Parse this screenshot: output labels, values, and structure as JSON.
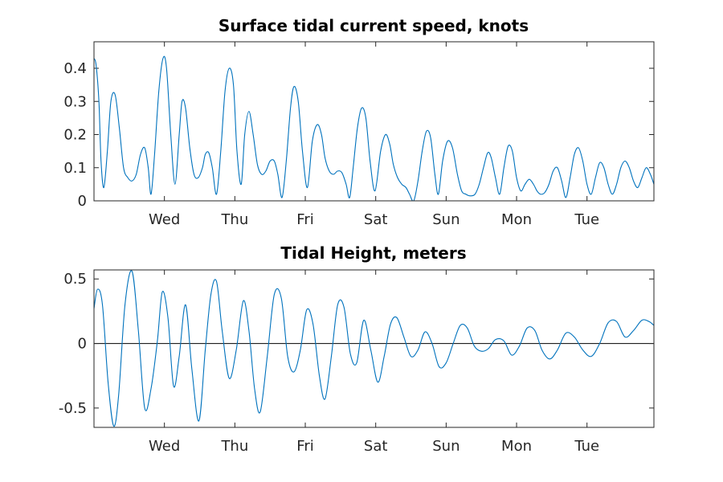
{
  "chart_data": [
    {
      "type": "line",
      "title": "Surface tidal current speed, knots",
      "xlabel": "",
      "ylabel": "",
      "x_range": [
        0,
        7.95
      ],
      "ylim": [
        0,
        0.48
      ],
      "y_ticks": [
        0,
        0.1,
        0.2,
        0.3,
        0.4
      ],
      "y_tick_labels": [
        "0",
        "0.1",
        "0.2",
        "0.3",
        "0.4"
      ],
      "x_ticks": [
        1,
        2,
        3,
        4,
        5,
        6,
        7
      ],
      "x_tick_labels": [
        "Wed",
        "Thu",
        "Fri",
        "Sat",
        "Sun",
        "Mon",
        "Tue"
      ],
      "grid": false,
      "series": [
        {
          "x": [
            0.0,
            0.03,
            0.07,
            0.1,
            0.14,
            0.19,
            0.24,
            0.3,
            0.36,
            0.42,
            0.48,
            0.54,
            0.6,
            0.66,
            0.72,
            0.77,
            0.81,
            0.86,
            0.92,
            0.98,
            1.03,
            1.09,
            1.15,
            1.21,
            1.25,
            1.3,
            1.36,
            1.42,
            1.48,
            1.54,
            1.58,
            1.63,
            1.68,
            1.74,
            1.8,
            1.86,
            1.92,
            1.98,
            2.03,
            2.09,
            2.14,
            2.2,
            2.26,
            2.32,
            2.38,
            2.44,
            2.5,
            2.56,
            2.61,
            2.67,
            2.73,
            2.79,
            2.84,
            2.9,
            2.96,
            3.03,
            3.1,
            3.17,
            3.23,
            3.28,
            3.34,
            3.4,
            3.46,
            3.52,
            3.58,
            3.63,
            3.68,
            3.74,
            3.8,
            3.86,
            3.92,
            3.99,
            4.07,
            4.14,
            4.2,
            4.25,
            4.31,
            4.37,
            4.43,
            4.48,
            4.54,
            4.6,
            4.66,
            4.72,
            4.78,
            4.84,
            4.89,
            4.95,
            5.02,
            5.09,
            5.16,
            5.22,
            5.28,
            5.34,
            5.41,
            5.47,
            5.53,
            5.59,
            5.64,
            5.7,
            5.76,
            5.82,
            5.88,
            5.94,
            6.0,
            6.06,
            6.12,
            6.18,
            6.24,
            6.29,
            6.34,
            6.4,
            6.46,
            6.52,
            6.58,
            6.64,
            6.7,
            6.76,
            6.82,
            6.88,
            6.94,
            7.0,
            7.06,
            7.12,
            7.18,
            7.24,
            7.3,
            7.36,
            7.42,
            7.48,
            7.54,
            7.6,
            7.66,
            7.72,
            7.78,
            7.84,
            7.9,
            7.95
          ],
          "values": [
            0.43,
            0.41,
            0.3,
            0.12,
            0.04,
            0.15,
            0.3,
            0.32,
            0.22,
            0.1,
            0.07,
            0.06,
            0.08,
            0.14,
            0.16,
            0.1,
            0.02,
            0.14,
            0.33,
            0.43,
            0.4,
            0.2,
            0.05,
            0.2,
            0.3,
            0.28,
            0.16,
            0.08,
            0.07,
            0.1,
            0.14,
            0.145,
            0.1,
            0.02,
            0.15,
            0.33,
            0.4,
            0.35,
            0.15,
            0.05,
            0.2,
            0.27,
            0.2,
            0.11,
            0.08,
            0.09,
            0.12,
            0.12,
            0.08,
            0.01,
            0.12,
            0.28,
            0.345,
            0.3,
            0.15,
            0.04,
            0.18,
            0.23,
            0.2,
            0.13,
            0.09,
            0.08,
            0.09,
            0.085,
            0.05,
            0.01,
            0.1,
            0.22,
            0.28,
            0.25,
            0.12,
            0.03,
            0.15,
            0.2,
            0.17,
            0.11,
            0.07,
            0.05,
            0.04,
            0.02,
            0.0,
            0.06,
            0.15,
            0.21,
            0.19,
            0.08,
            0.02,
            0.12,
            0.18,
            0.16,
            0.08,
            0.03,
            0.02,
            0.015,
            0.02,
            0.05,
            0.1,
            0.145,
            0.13,
            0.07,
            0.02,
            0.1,
            0.165,
            0.15,
            0.07,
            0.03,
            0.05,
            0.065,
            0.05,
            0.03,
            0.02,
            0.025,
            0.05,
            0.09,
            0.1,
            0.06,
            0.01,
            0.07,
            0.14,
            0.16,
            0.12,
            0.05,
            0.02,
            0.07,
            0.115,
            0.1,
            0.05,
            0.02,
            0.05,
            0.1,
            0.12,
            0.1,
            0.06,
            0.04,
            0.07,
            0.1,
            0.08,
            0.05
          ]
        }
      ]
    },
    {
      "type": "line",
      "title": "Tidal Height, meters",
      "xlabel": "",
      "ylabel": "",
      "x_range": [
        0,
        7.95
      ],
      "ylim": [
        -0.65,
        0.57
      ],
      "y_ticks": [
        -0.5,
        0,
        0.5
      ],
      "y_tick_labels": [
        "-0.5",
        "0",
        "0.5"
      ],
      "x_ticks": [
        1,
        2,
        3,
        4,
        5,
        6,
        7
      ],
      "x_tick_labels": [
        "Wed",
        "Thu",
        "Fri",
        "Sat",
        "Sun",
        "Mon",
        "Tue"
      ],
      "grid": false,
      "zero_line": true,
      "series": [
        {
          "x": [
            0.0,
            0.05,
            0.12,
            0.2,
            0.28,
            0.35,
            0.44,
            0.54,
            0.63,
            0.72,
            0.81,
            0.9,
            0.97,
            1.05,
            1.13,
            1.21,
            1.3,
            1.39,
            1.49,
            1.58,
            1.66,
            1.74,
            1.82,
            1.92,
            2.02,
            2.12,
            2.2,
            2.28,
            2.36,
            2.46,
            2.56,
            2.66,
            2.75,
            2.84,
            2.93,
            3.02,
            3.11,
            3.2,
            3.28,
            3.37,
            3.46,
            3.55,
            3.64,
            3.73,
            3.83,
            3.93,
            4.03,
            4.12,
            4.21,
            4.3,
            4.4,
            4.5,
            4.6,
            4.7,
            4.8,
            4.9,
            5.0,
            5.1,
            5.2,
            5.3,
            5.4,
            5.5,
            5.6,
            5.7,
            5.82,
            5.93,
            6.04,
            6.15,
            6.26,
            6.36,
            6.47,
            6.58,
            6.7,
            6.82,
            6.94,
            7.06,
            7.18,
            7.3,
            7.42,
            7.54,
            7.66,
            7.78,
            7.88,
            7.95
          ],
          "values": [
            0.27,
            0.42,
            0.3,
            -0.3,
            -0.64,
            -0.4,
            0.3,
            0.56,
            0.1,
            -0.5,
            -0.35,
            0.02,
            0.4,
            0.2,
            -0.33,
            -0.1,
            0.3,
            -0.2,
            -0.6,
            -0.05,
            0.38,
            0.48,
            0.1,
            -0.27,
            -0.05,
            0.33,
            0.1,
            -0.35,
            -0.53,
            -0.1,
            0.38,
            0.35,
            -0.1,
            -0.22,
            -0.05,
            0.26,
            0.15,
            -0.25,
            -0.43,
            -0.1,
            0.3,
            0.28,
            -0.08,
            -0.15,
            0.18,
            -0.05,
            -0.3,
            -0.1,
            0.15,
            0.2,
            0.05,
            -0.1,
            -0.05,
            0.09,
            0.0,
            -0.18,
            -0.15,
            0.0,
            0.14,
            0.12,
            -0.02,
            -0.06,
            -0.04,
            0.03,
            0.02,
            -0.09,
            -0.02,
            0.12,
            0.1,
            -0.05,
            -0.12,
            -0.05,
            0.08,
            0.05,
            -0.05,
            -0.1,
            0.0,
            0.16,
            0.17,
            0.05,
            0.1,
            0.18,
            0.17,
            0.14
          ]
        }
      ]
    }
  ]
}
